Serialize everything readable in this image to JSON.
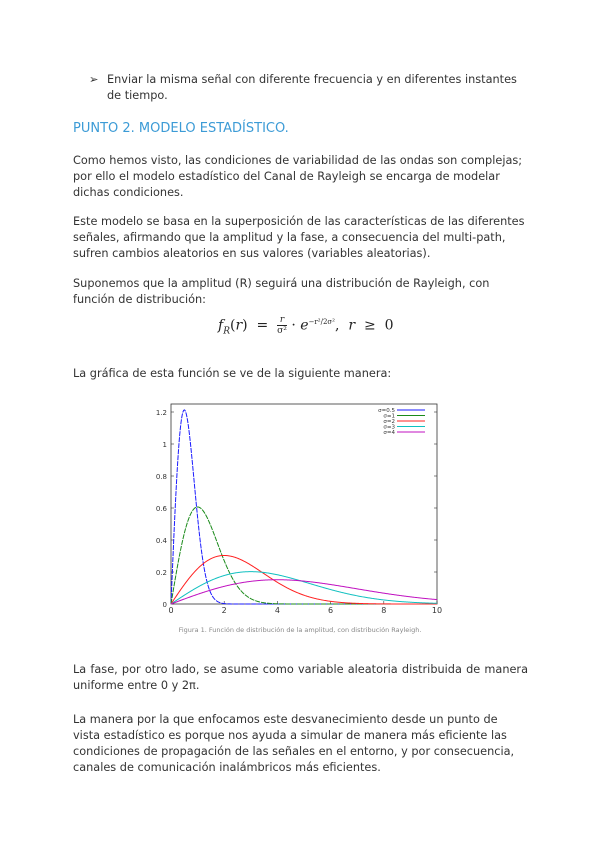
{
  "bullet": {
    "marker": "➢",
    "text": "Enviar la misma señal con diferente frecuencia y en diferentes instantes de tiempo."
  },
  "heading": "PUNTO 2. MODELO ESTADÍSTICO.",
  "paragraphs": [
    "Como hemos visto, las condiciones de variabilidad de las ondas son complejas; por ello el modelo estadístico del Canal de Rayleigh se encarga de modelar dichas condiciones.",
    "Este modelo se basa en la superposición de las características de las diferentes señales, afirmando que la amplitud y la fase, a consecuencia del multi-path, sufren cambios aleatorios en sus valores (variables aleatorias).",
    "Suponemos que la amplitud (R) seguirá una distribución de Rayleigh, con función de distribución:",
    "La gráfica de esta función se ve de la siguiente manera:",
    "La fase, por otro lado, se asume como variable aleatoria distribuida de manera uniforme entre 0 y 2π.",
    "La manera por la que enfocamos este desvanecimiento desde un punto de vista estadístico es porque nos ayuda a simular de manera más eficiente las condiciones de propagación de las señales en el entorno, y por consecuencia, canales de comunicación inalámbricos más eficientes."
  ],
  "formula": {
    "lhs": "f_R(r)",
    "text": "f_R(r) = r/σ² · e^(−r²/2σ²),  r ≥ 0"
  },
  "caption": "Figura 1. Función de distribución de la amplitud, con distribución Rayleigh.",
  "chart_data": {
    "type": "line",
    "function": "r/σ² · exp(−r²/(2σ²))",
    "xlim": [
      0,
      10
    ],
    "ylim": [
      0,
      1.25
    ],
    "xticks": [
      "0",
      "2",
      "4",
      "6",
      "8",
      "10"
    ],
    "yticks": [
      "0",
      "0.2",
      "0.4",
      "0.6",
      "0.8",
      "1",
      "1.2"
    ],
    "legend_placement": "top-right",
    "series": [
      {
        "name": "σ=0.5",
        "sigma": 0.5,
        "color": "#1a1aff",
        "peak": [
          0.5,
          1.21
        ]
      },
      {
        "name": "σ=1",
        "sigma": 1,
        "color": "#1a8a1a",
        "peak": [
          1,
          0.61
        ]
      },
      {
        "name": "σ=2",
        "sigma": 2,
        "color": "#ff2020",
        "peak": [
          2,
          0.3
        ]
      },
      {
        "name": "σ=3",
        "sigma": 3,
        "color": "#10c0c0",
        "peak": [
          3,
          0.2
        ]
      },
      {
        "name": "σ=4",
        "sigma": 4,
        "color": "#c010c0",
        "peak": [
          4,
          0.15
        ]
      }
    ]
  }
}
